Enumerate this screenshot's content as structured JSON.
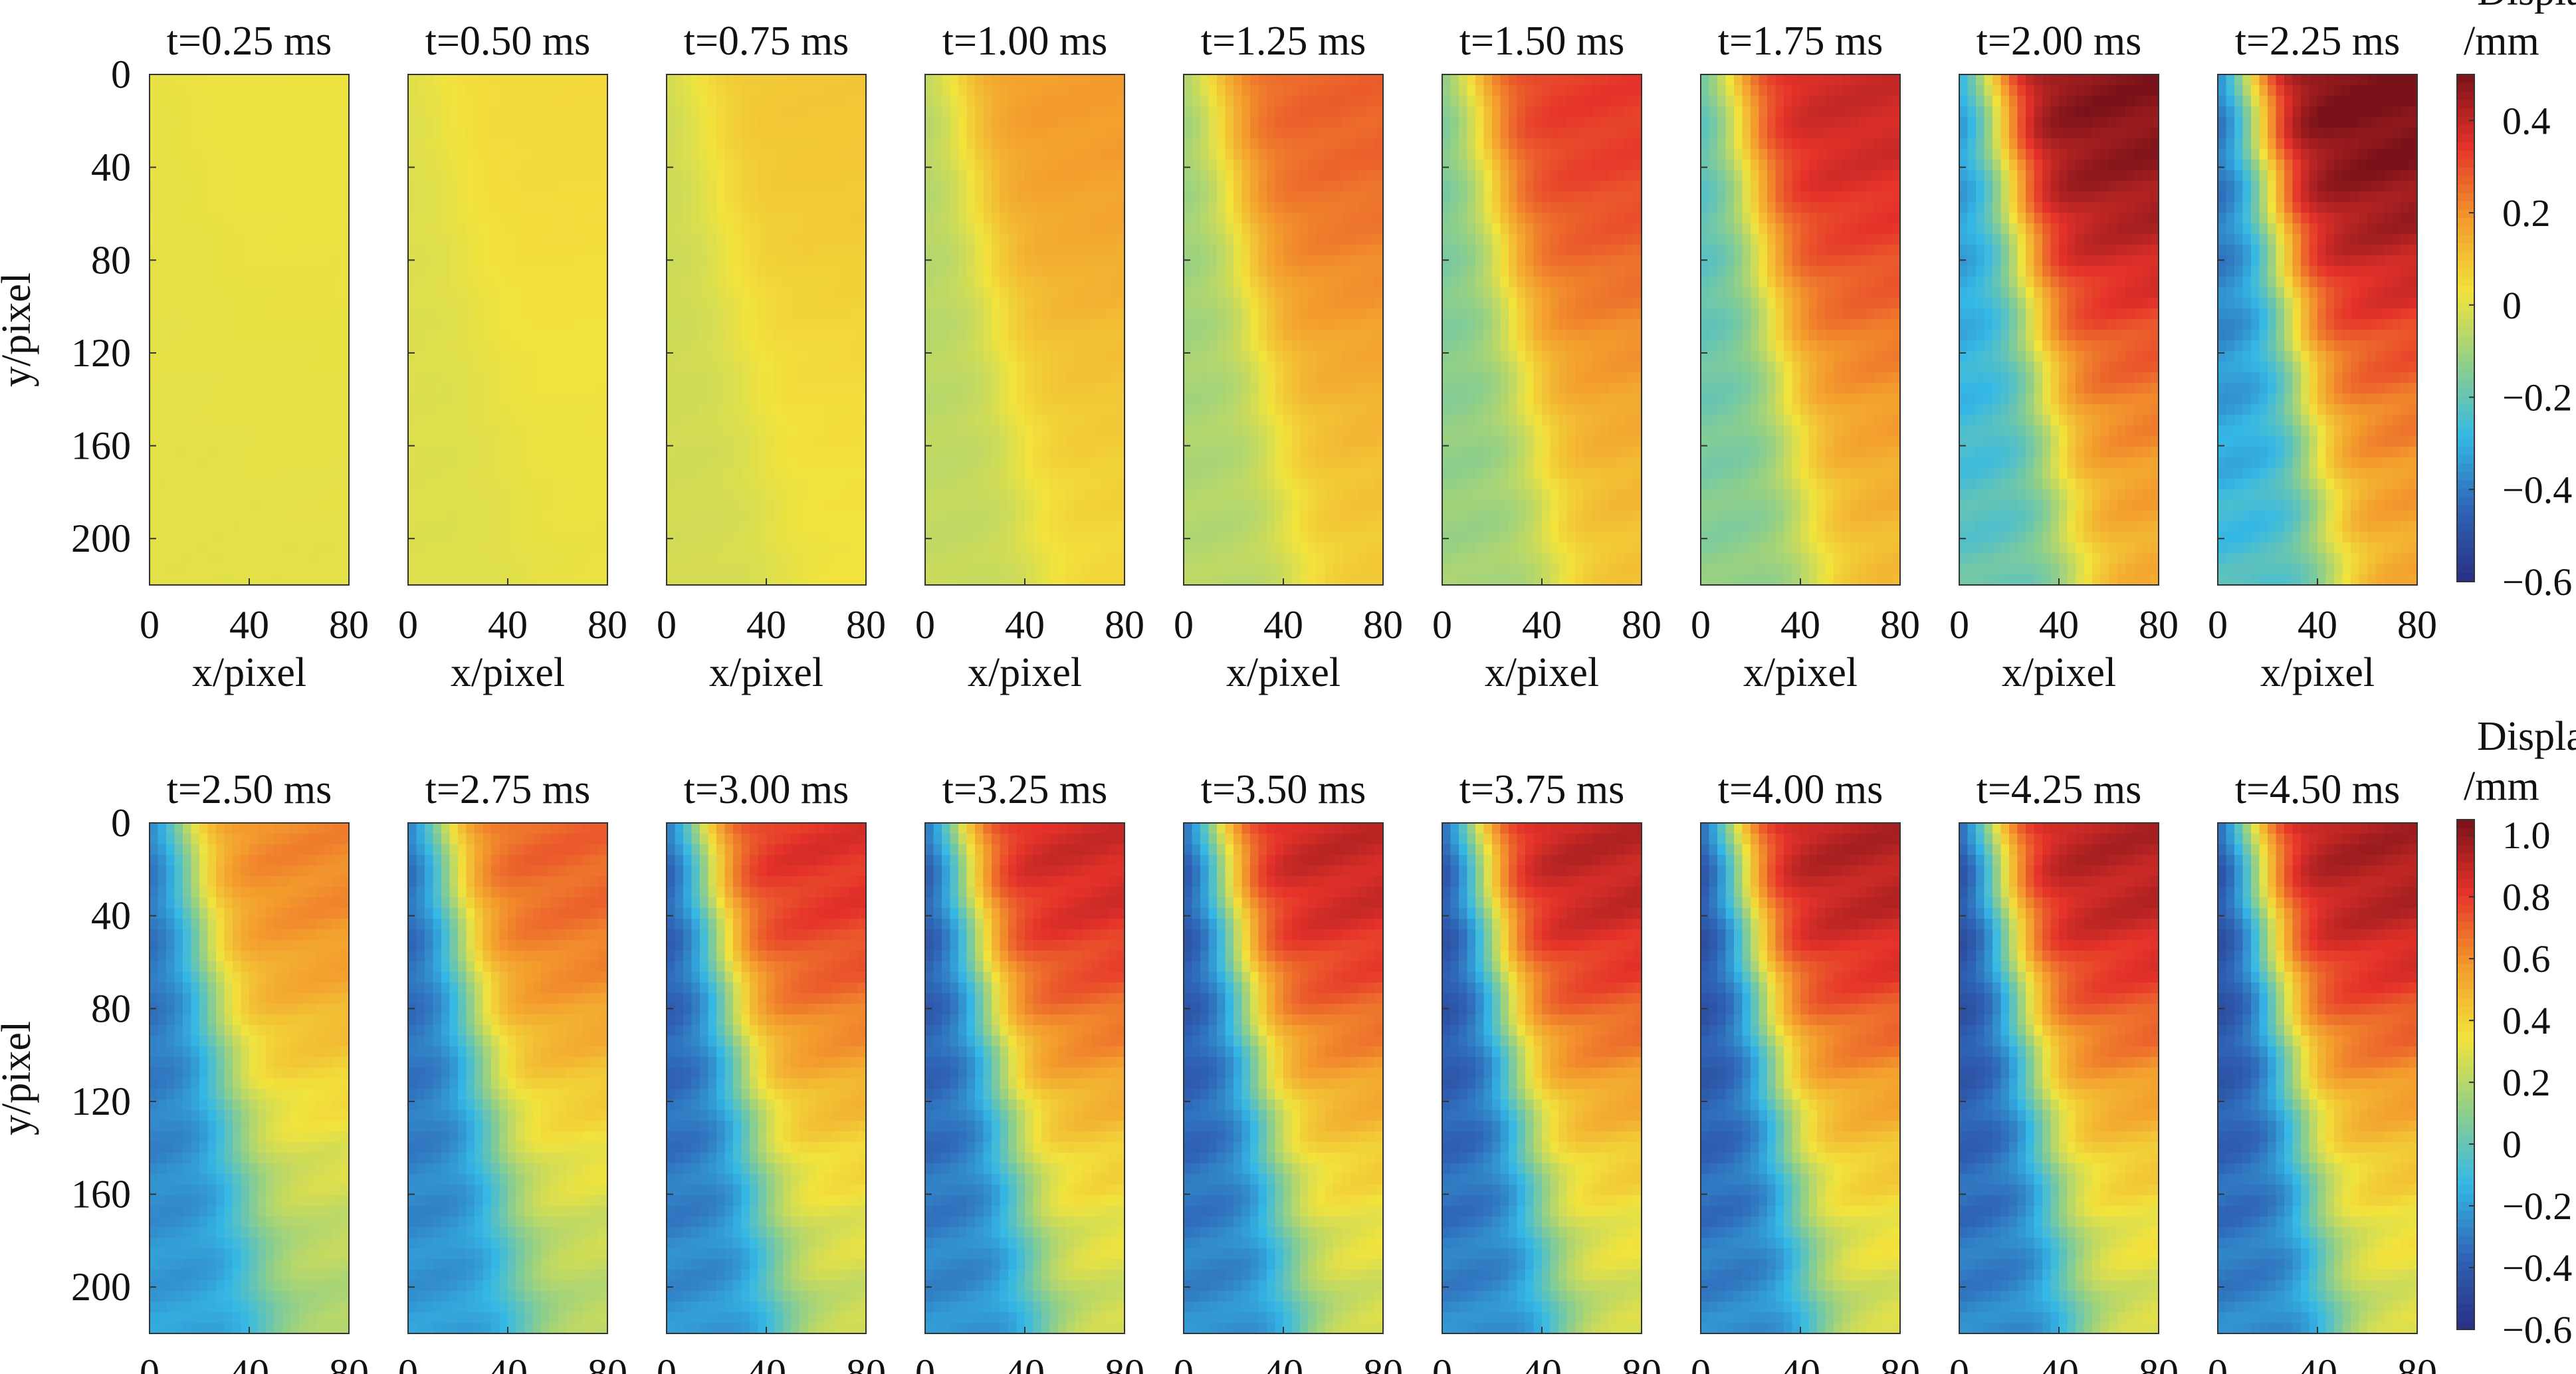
{
  "chart_data": {
    "type": "heatmap",
    "xlabel": "x/pixel",
    "ylabel": "y/pixel",
    "xlim": [
      0,
      80
    ],
    "ylim": [
      0,
      220
    ],
    "x_ticks": [
      0,
      40,
      80
    ],
    "y_ticks": [
      0,
      40,
      80,
      120,
      160,
      200
    ],
    "y_axis": "inverted",
    "layout": "2 rows of 9 subplots",
    "rows": [
      {
        "frames": [
          "t=0.25 ms",
          "t=0.50 ms",
          "t=0.75 ms",
          "t=1.00 ms",
          "t=1.25 ms",
          "t=1.50 ms",
          "t=1.75 ms",
          "t=2.00 ms",
          "t=2.25 ms"
        ],
        "times_ms": [
          0.25,
          0.5,
          0.75,
          1.0,
          1.25,
          1.5,
          1.75,
          2.0,
          2.25
        ],
        "colorbar": {
          "title_line1": "Displacement",
          "title_line2": "/mm",
          "ticks": [
            0.4,
            0.2,
            0,
            -0.2,
            -0.4,
            -0.6
          ],
          "tick_labels": [
            "0.4",
            "0.2",
            "0",
            "−0.2",
            "−0.4",
            "−0.6"
          ],
          "range": [
            -0.6,
            0.5
          ]
        },
        "left_min": [
          0.01,
          -0.01,
          -0.04,
          -0.09,
          -0.14,
          -0.21,
          -0.28,
          -0.43,
          -0.52
        ],
        "right_max": [
          0.02,
          0.05,
          0.09,
          0.18,
          0.27,
          0.33,
          0.38,
          0.48,
          0.5
        ]
      },
      {
        "frames": [
          "t=2.50 ms",
          "t=2.75 ms",
          "t=3.00 ms",
          "t=3.25 ms",
          "t=3.50 ms",
          "t=3.75 ms",
          "t=4.00 ms",
          "t=4.25 ms",
          "t=4.50 ms"
        ],
        "times_ms": [
          2.5,
          2.75,
          3.0,
          3.25,
          3.5,
          3.75,
          4.0,
          4.25,
          4.5
        ],
        "colorbar": {
          "title_line1": "Displacement",
          "title_line2": "/mm",
          "ticks": [
            1.0,
            0.8,
            0.6,
            0.4,
            0.2,
            0,
            -0.2,
            -0.4,
            -0.6
          ],
          "tick_labels": [
            "1.0",
            "0.8",
            "0.6",
            "0.4",
            "0.2",
            "0",
            "−0.2",
            "−0.4",
            "−0.6"
          ],
          "range": [
            -0.6,
            1.05
          ]
        },
        "left_min": [
          -0.42,
          -0.45,
          -0.5,
          -0.52,
          -0.54,
          -0.56,
          -0.57,
          -0.58,
          -0.58
        ],
        "right_max": [
          0.62,
          0.7,
          0.82,
          0.86,
          0.88,
          0.9,
          0.92,
          0.92,
          0.94
        ]
      }
    ]
  },
  "colors": {
    "colormap": [
      "#2a2f84",
      "#2f64b5",
      "#35b8e6",
      "#8fcf8a",
      "#f2e33c",
      "#f39a2d",
      "#e5322a",
      "#7a1219"
    ]
  }
}
